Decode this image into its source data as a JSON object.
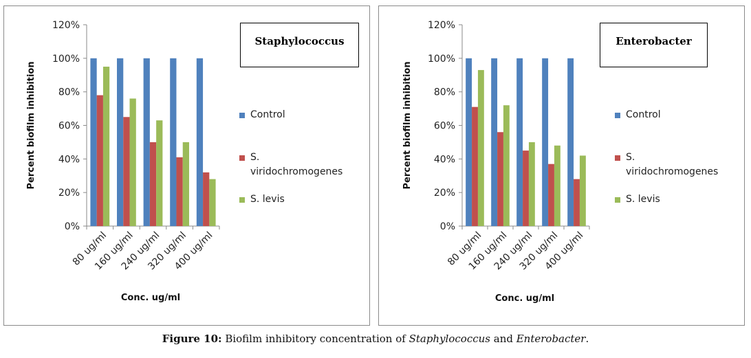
{
  "chart_data": [
    {
      "type": "bar",
      "title": "Staphylococcus",
      "xlabel": "Conc. ug/ml",
      "ylabel": "Percent biofilm inhibition",
      "ylim": [
        0,
        120
      ],
      "yticks": [
        "0%",
        "20%",
        "40%",
        "60%",
        "80%",
        "100%",
        "120%"
      ],
      "categories": [
        "80 ug/ml",
        "160 ug/ml",
        "240 ug/ml",
        "320 ug/ml",
        "400 ug/ml"
      ],
      "series": [
        {
          "name": "Control",
          "color": "#4F81BD",
          "values": [
            100,
            100,
            100,
            100,
            100
          ]
        },
        {
          "name": "S. viridochromogenes",
          "color": "#C0504D",
          "values": [
            78,
            65,
            50,
            41,
            32
          ]
        },
        {
          "name": "S. levis",
          "color": "#9BBB59",
          "values": [
            95,
            76,
            63,
            50,
            28
          ]
        }
      ],
      "legend": {
        "lines": [
          [
            "Control"
          ],
          [
            "S.",
            "viridochromogenes"
          ],
          [
            "S. levis"
          ]
        ],
        "position": "right"
      }
    },
    {
      "type": "bar",
      "title": "Enterobacter",
      "xlabel": "Conc. ug/ml",
      "ylabel": "Percent biofilm inhibition",
      "ylim": [
        0,
        120
      ],
      "yticks": [
        "0%",
        "20%",
        "40%",
        "60%",
        "80%",
        "100%",
        "120%"
      ],
      "categories": [
        "80 ug/ml",
        "160 ug/ml",
        "240 ug/ml",
        "320 ug/ml",
        "400 ug/ml"
      ],
      "series": [
        {
          "name": "Control",
          "color": "#4F81BD",
          "values": [
            100,
            100,
            100,
            100,
            100
          ]
        },
        {
          "name": "S. viridochromogenes",
          "color": "#C0504D",
          "values": [
            71,
            56,
            45,
            37,
            28
          ]
        },
        {
          "name": "S. levis",
          "color": "#9BBB59",
          "values": [
            93,
            72,
            50,
            48,
            42
          ]
        }
      ],
      "legend": {
        "lines": [
          [
            "Control"
          ],
          [
            "S.",
            "viridochromogenes"
          ],
          [
            "S. levis"
          ]
        ],
        "position": "right"
      }
    }
  ],
  "caption": {
    "label": "Figure 10:",
    "text_before": " Biofilm inhibitory concentration of ",
    "italic_1": "Staphylococcus",
    "text_mid": " and ",
    "italic_2": "Enterobacter",
    "text_after": "."
  }
}
